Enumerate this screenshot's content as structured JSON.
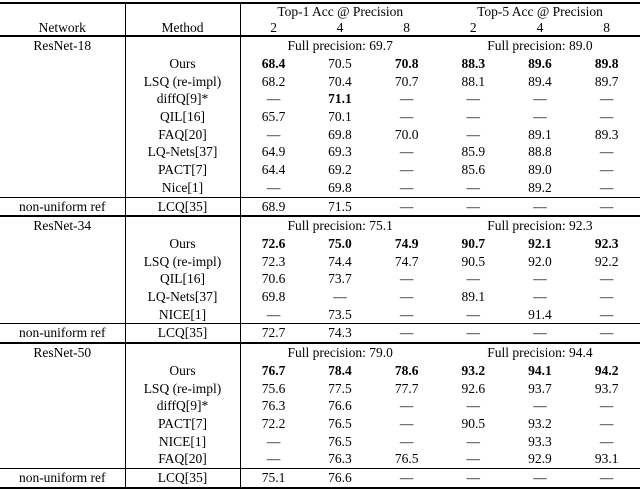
{
  "colors": {
    "text": "#000000",
    "background": "#ffffff",
    "rule": "#000000"
  },
  "table": {
    "header": {
      "network": "Network",
      "method": "Method",
      "top1": "Top-1 Acc @ Precision",
      "top5": "Top-5 Acc @ Precision",
      "precisions": [
        "2",
        "4",
        "8"
      ]
    },
    "sections": [
      {
        "network": "ResNet-18",
        "fp_top1": "Full precision: 69.7",
        "fp_top5": "Full precision: 89.0",
        "rows": [
          {
            "method": "Ours",
            "values": [
              "68.4",
              "70.5",
              "70.8",
              "88.3",
              "89.6",
              "89.8"
            ],
            "bold": [
              true,
              false,
              true,
              true,
              true,
              true
            ]
          },
          {
            "method": "LSQ (re-impl)",
            "values": [
              "68.2",
              "70.4",
              "70.7",
              "88.1",
              "89.4",
              "89.7"
            ]
          },
          {
            "method": "diffQ[9]*",
            "values": [
              "—",
              "71.1",
              "—",
              "—",
              "—",
              "—"
            ],
            "bold": [
              false,
              true,
              false,
              false,
              false,
              false
            ]
          },
          {
            "method": "QIL[16]",
            "values": [
              "65.7",
              "70.1",
              "—",
              "—",
              "—",
              "—"
            ]
          },
          {
            "method": "FAQ[20]",
            "values": [
              "—",
              "69.8",
              "70.0",
              "—",
              "89.1",
              "89.3"
            ]
          },
          {
            "method": "LQ-Nets[37]",
            "values": [
              "64.9",
              "69.3",
              "—",
              "85.9",
              "88.8",
              "—"
            ]
          },
          {
            "method": "PACT[7]",
            "values": [
              "64.4",
              "69.2",
              "—",
              "85.6",
              "89.0",
              "—"
            ]
          },
          {
            "method": "Nice[1]",
            "values": [
              "—",
              "69.8",
              "—",
              "—",
              "89.2",
              "—"
            ]
          }
        ],
        "ref_row": {
          "network": "non-uniform ref",
          "method": "LCQ[35]",
          "values": [
            "68.9",
            "71.5",
            "—",
            "—",
            "—",
            "—"
          ]
        }
      },
      {
        "network": "ResNet-34",
        "fp_top1": "Full precision: 75.1",
        "fp_top5": "Full precision: 92.3",
        "rows": [
          {
            "method": "Ours",
            "values": [
              "72.6",
              "75.0",
              "74.9",
              "90.7",
              "92.1",
              "92.3"
            ],
            "bold": [
              true,
              true,
              true,
              true,
              true,
              true
            ]
          },
          {
            "method": "LSQ (re-impl)",
            "values": [
              "72.3",
              "74.4",
              "74.7",
              "90.5",
              "92.0",
              "92.2"
            ]
          },
          {
            "method": "QIL[16]",
            "values": [
              "70.6",
              "73.7",
              "—",
              "—",
              "—",
              "—"
            ]
          },
          {
            "method": "LQ-Nets[37]",
            "values": [
              "69.8",
              "—",
              "—",
              "89.1",
              "—",
              "—"
            ]
          },
          {
            "method": "NICE[1]",
            "values": [
              "—",
              "73.5",
              "—",
              "—",
              "91.4",
              "—"
            ]
          }
        ],
        "ref_row": {
          "network": "non-uniform ref",
          "method": "LCQ[35]",
          "values": [
            "72.7",
            "74.3",
            "—",
            "—",
            "—",
            "—"
          ]
        }
      },
      {
        "network": "ResNet-50",
        "fp_top1": "Full precision: 79.0",
        "fp_top5": "Full precision: 94.4",
        "rows": [
          {
            "method": "Ours",
            "values": [
              "76.7",
              "78.4",
              "78.6",
              "93.2",
              "94.1",
              "94.2"
            ],
            "bold": [
              true,
              true,
              true,
              true,
              true,
              true
            ]
          },
          {
            "method": "LSQ (re-impl)",
            "values": [
              "75.6",
              "77.5",
              "77.7",
              "92.6",
              "93.7",
              "93.7"
            ]
          },
          {
            "method": "diffQ[9]*",
            "values": [
              "76.3",
              "76.6",
              "—",
              "—",
              "—",
              "—"
            ]
          },
          {
            "method": "PACT[7]",
            "values": [
              "72.2",
              "76.5",
              "—",
              "90.5",
              "93.2",
              "—"
            ]
          },
          {
            "method": "NICE[1]",
            "values": [
              "—",
              "76.5",
              "—",
              "—",
              "93.3",
              "—"
            ]
          },
          {
            "method": "FAQ[20]",
            "values": [
              "—",
              "76.3",
              "76.5",
              "—",
              "92.9",
              "93.1"
            ]
          }
        ],
        "ref_row": {
          "network": "non-uniform ref",
          "method": "LCQ[35]",
          "values": [
            "75.1",
            "76.6",
            "—",
            "—",
            "—",
            "—"
          ]
        }
      }
    ]
  }
}
